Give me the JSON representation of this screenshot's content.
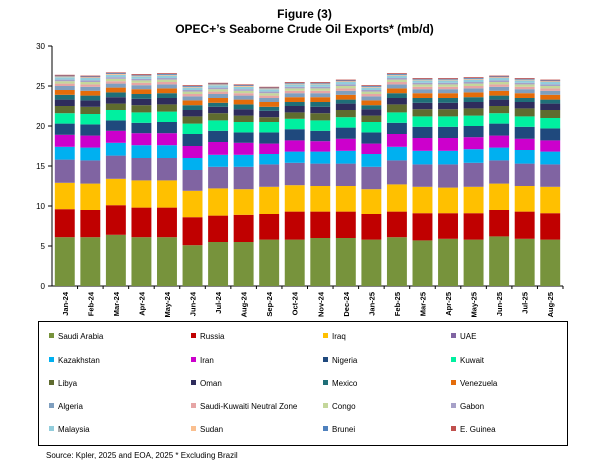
{
  "chart_data": {
    "type": "bar",
    "stacked": true,
    "title": "Figure (3)",
    "subtitle": "OPEC+’s Seaborne Crude Oil Exports* (mb/d)",
    "xlabel": "",
    "ylabel": "",
    "ylim": [
      0,
      30
    ],
    "yticks": [
      "0",
      "5",
      "10",
      "15",
      "20",
      "25",
      "30"
    ],
    "grid": false,
    "legend_position": "bottom",
    "categories": [
      "Jan-24",
      "Feb-24",
      "Mar-24",
      "Apr-24",
      "May-24",
      "Jun-24",
      "Jul-24",
      "Aug-24",
      "Sep-24",
      "Oct-24",
      "Nov-24",
      "Dec-24",
      "Jan-25",
      "Feb-25",
      "Mar-25",
      "Apr-25",
      "May-25",
      "Jun-25",
      "Jul-25",
      "Aug-25"
    ],
    "series": [
      {
        "name": "Saudi Arabia",
        "color": "#77933c",
        "values": [
          6.1,
          6.1,
          6.4,
          6.1,
          6.1,
          5.1,
          5.5,
          5.5,
          5.8,
          5.8,
          6.0,
          6.0,
          5.8,
          6.1,
          5.7,
          5.9,
          5.8,
          6.2,
          5.9,
          5.8
        ]
      },
      {
        "name": "Russia",
        "color": "#c00000",
        "values": [
          3.5,
          3.4,
          3.7,
          3.7,
          3.7,
          3.5,
          3.3,
          3.4,
          3.2,
          3.5,
          3.3,
          3.3,
          3.2,
          3.2,
          3.4,
          3.2,
          3.3,
          3.3,
          3.4,
          3.3
        ]
      },
      {
        "name": "Iraq",
        "color": "#ffc000",
        "values": [
          3.3,
          3.3,
          3.3,
          3.4,
          3.4,
          3.3,
          3.4,
          3.2,
          3.4,
          3.3,
          3.2,
          3.2,
          3.1,
          3.4,
          3.3,
          3.2,
          3.3,
          3.3,
          3.2,
          3.3
        ]
      },
      {
        "name": "UAE",
        "color": "#8064a2",
        "values": [
          2.9,
          2.9,
          2.9,
          2.8,
          2.8,
          2.6,
          2.7,
          2.8,
          2.8,
          2.8,
          2.8,
          2.8,
          2.8,
          3.0,
          2.8,
          2.9,
          3.0,
          2.9,
          2.8,
          2.8
        ]
      },
      {
        "name": "Kazakhstan",
        "color": "#00b0f0",
        "values": [
          1.6,
          1.6,
          1.6,
          1.6,
          1.6,
          1.5,
          1.5,
          1.5,
          1.3,
          1.4,
          1.5,
          1.6,
          1.6,
          1.7,
          1.7,
          1.7,
          1.7,
          1.6,
          1.7,
          1.6
        ]
      },
      {
        "name": "Iran",
        "color": "#cc00cc",
        "values": [
          1.5,
          1.5,
          1.5,
          1.5,
          1.5,
          1.5,
          1.6,
          1.5,
          1.3,
          1.4,
          1.3,
          1.5,
          1.3,
          1.6,
          1.6,
          1.6,
          1.5,
          1.5,
          1.4,
          1.4
        ]
      },
      {
        "name": "Nigeria",
        "color": "#1f497d",
        "values": [
          1.4,
          1.4,
          1.3,
          1.3,
          1.4,
          1.5,
          1.4,
          1.3,
          1.4,
          1.4,
          1.3,
          1.4,
          1.4,
          1.4,
          1.4,
          1.4,
          1.4,
          1.5,
          1.5,
          1.5
        ]
      },
      {
        "name": "Kuwait",
        "color": "#00f0a0",
        "values": [
          1.3,
          1.3,
          1.3,
          1.3,
          1.3,
          1.3,
          1.3,
          1.3,
          1.3,
          1.3,
          1.3,
          1.3,
          1.3,
          1.3,
          1.3,
          1.3,
          1.3,
          1.3,
          1.3,
          1.3
        ]
      },
      {
        "name": "Libya",
        "color": "#5f6b2f",
        "values": [
          0.9,
          0.9,
          0.8,
          0.9,
          0.9,
          0.9,
          0.9,
          0.8,
          0.6,
          0.8,
          0.9,
          0.9,
          0.8,
          1.0,
          0.9,
          0.9,
          0.9,
          0.9,
          1.0,
          1.0
        ]
      },
      {
        "name": "Oman",
        "color": "#2e2c5c",
        "values": [
          0.8,
          0.8,
          0.8,
          0.8,
          0.8,
          0.8,
          0.8,
          0.8,
          0.8,
          0.8,
          0.8,
          0.8,
          0.8,
          0.8,
          0.8,
          0.8,
          0.8,
          0.8,
          0.8,
          0.8
        ]
      },
      {
        "name": "Mexico",
        "color": "#1f6f78",
        "values": [
          0.6,
          0.6,
          0.6,
          0.6,
          0.6,
          0.6,
          0.5,
          0.6,
          0.5,
          0.5,
          0.6,
          0.5,
          0.5,
          0.6,
          0.6,
          0.6,
          0.6,
          0.5,
          0.5,
          0.5
        ]
      },
      {
        "name": "Venezuela",
        "color": "#e46c0a",
        "values": [
          0.6,
          0.6,
          0.6,
          0.6,
          0.6,
          0.6,
          0.6,
          0.6,
          0.6,
          0.6,
          0.6,
          0.6,
          0.6,
          0.6,
          0.6,
          0.6,
          0.6,
          0.6,
          0.6,
          0.6
        ]
      },
      {
        "name": "Algeria",
        "color": "#7f9fbf",
        "values": [
          0.5,
          0.5,
          0.5,
          0.5,
          0.5,
          0.5,
          0.5,
          0.5,
          0.5,
          0.5,
          0.5,
          0.5,
          0.5,
          0.5,
          0.5,
          0.5,
          0.5,
          0.5,
          0.5,
          0.5
        ]
      },
      {
        "name": "Saudi-Kuwaiti Neutral Zone",
        "color": "#e6a5a5",
        "values": [
          0.3,
          0.3,
          0.3,
          0.3,
          0.3,
          0.3,
          0.3,
          0.3,
          0.3,
          0.3,
          0.3,
          0.3,
          0.3,
          0.3,
          0.3,
          0.3,
          0.3,
          0.3,
          0.3,
          0.3
        ]
      },
      {
        "name": "Congo",
        "color": "#c4d79b",
        "values": [
          0.3,
          0.3,
          0.3,
          0.3,
          0.3,
          0.3,
          0.3,
          0.3,
          0.3,
          0.3,
          0.3,
          0.3,
          0.3,
          0.3,
          0.3,
          0.3,
          0.3,
          0.3,
          0.3,
          0.3
        ]
      },
      {
        "name": "Gabon",
        "color": "#a6a0c8",
        "values": [
          0.2,
          0.2,
          0.2,
          0.2,
          0.2,
          0.2,
          0.2,
          0.2,
          0.2,
          0.2,
          0.2,
          0.2,
          0.2,
          0.2,
          0.2,
          0.2,
          0.2,
          0.2,
          0.2,
          0.2
        ]
      },
      {
        "name": "Malaysia",
        "color": "#92cddc",
        "values": [
          0.3,
          0.3,
          0.3,
          0.3,
          0.3,
          0.3,
          0.3,
          0.3,
          0.3,
          0.3,
          0.3,
          0.3,
          0.3,
          0.3,
          0.3,
          0.3,
          0.3,
          0.3,
          0.3,
          0.3
        ]
      },
      {
        "name": "Sudan",
        "color": "#fabf8f",
        "values": [
          0.1,
          0.1,
          0.1,
          0.1,
          0.1,
          0.1,
          0.1,
          0.1,
          0.1,
          0.1,
          0.1,
          0.1,
          0.1,
          0.1,
          0.1,
          0.1,
          0.1,
          0.1,
          0.1,
          0.1
        ]
      },
      {
        "name": "Brunei",
        "color": "#4f81bd",
        "values": [
          0.1,
          0.1,
          0.1,
          0.1,
          0.1,
          0.1,
          0.1,
          0.1,
          0.1,
          0.1,
          0.1,
          0.1,
          0.1,
          0.1,
          0.1,
          0.1,
          0.1,
          0.1,
          0.1,
          0.1
        ]
      },
      {
        "name": "E. Guinea",
        "color": "#c0504d",
        "values": [
          0.1,
          0.1,
          0.1,
          0.1,
          0.1,
          0.1,
          0.1,
          0.1,
          0.1,
          0.1,
          0.1,
          0.1,
          0.1,
          0.1,
          0.1,
          0.1,
          0.1,
          0.1,
          0.1,
          0.1
        ]
      }
    ]
  },
  "source_note": "Source: Kpler, 2025 and EOA, 2025     * Excluding Brazil"
}
